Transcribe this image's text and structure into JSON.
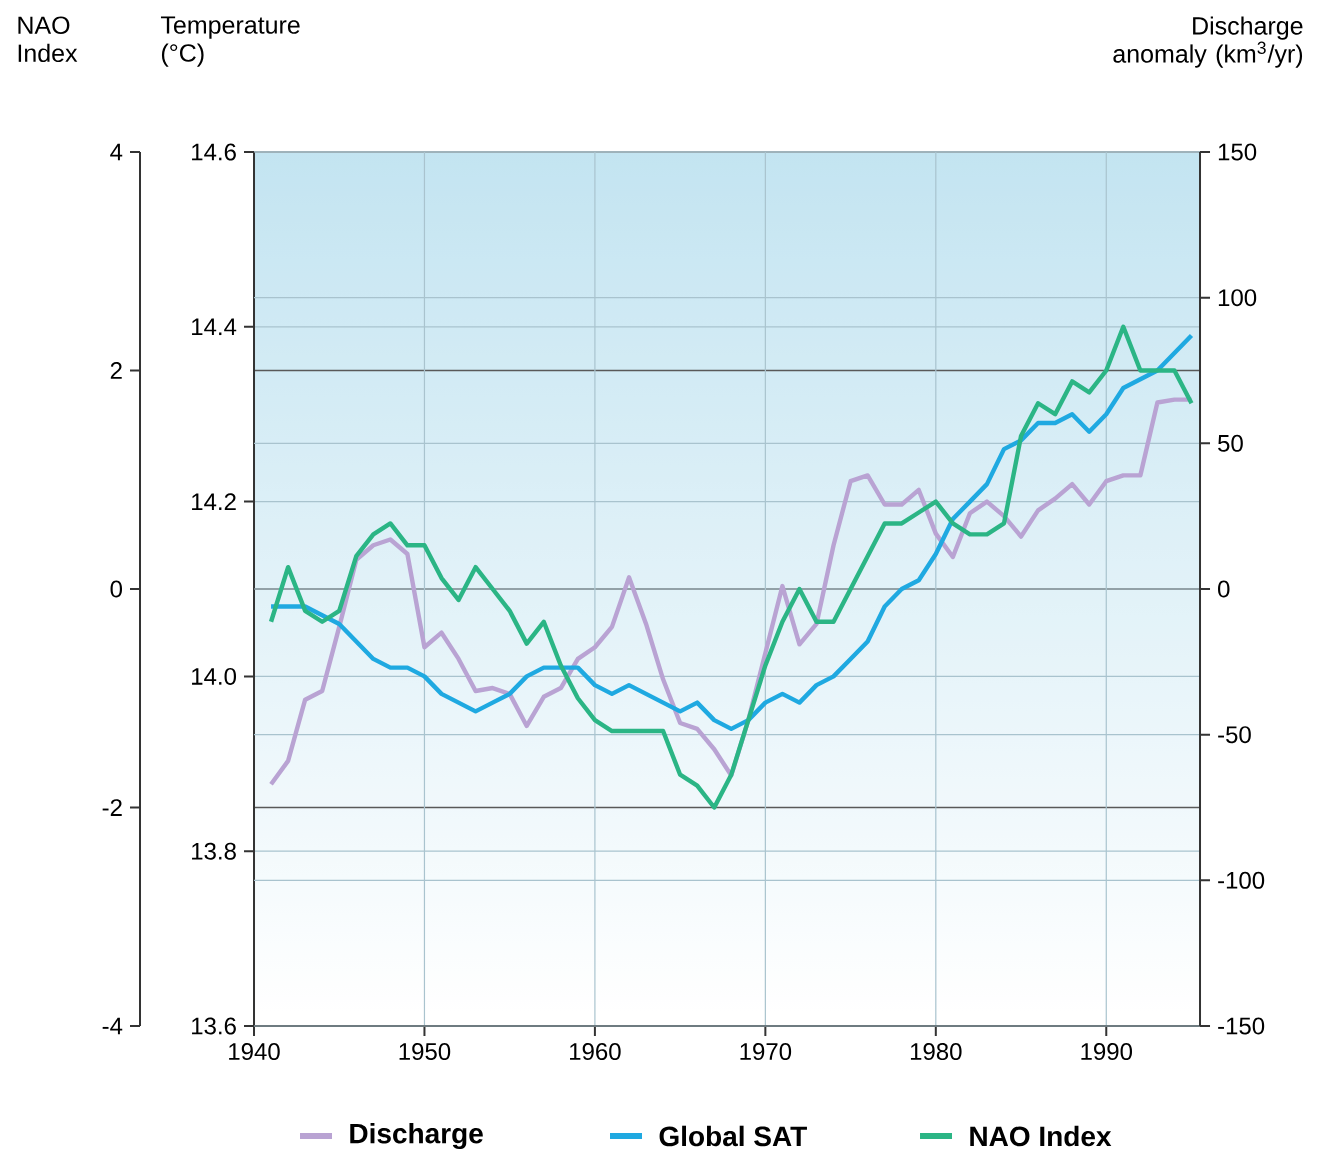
{
  "chart_data": {
    "type": "line",
    "ylabel": "Temperature (°C)",
    "y2label": "Discharge anomaly (km$^{3}$/yr)",
    "y3label": "NAO Index",
    "x": [
      1941,
      1942,
      1943,
      1944,
      1945,
      1946,
      1947,
      1948,
      1949,
      1950,
      1951,
      1952,
      1953,
      1954,
      1955,
      1956,
      1957,
      1958,
      1959,
      1960,
      1961,
      1962,
      1963,
      1964,
      1965,
      1966,
      1967,
      1968,
      1969,
      1970,
      1971,
      1972,
      1973,
      1974,
      1975,
      1976,
      1977,
      1978,
      1979,
      1980,
      1981,
      1982,
      1983,
      1984,
      1985,
      1986,
      1987,
      1988,
      1989,
      1990,
      1991,
      1992,
      1993,
      1994,
      1995
    ],
    "xlim": [
      1940,
      1995.5
    ],
    "xticks": [
      1940,
      1950,
      1960,
      1970,
      1980,
      1990
    ],
    "ylim": [
      13.6,
      14.6
    ],
    "yticks": [
      13.6,
      13.8,
      {
        "value": 14.0,
        "label": "14.0"
      },
      14.2,
      14.4,
      14.6
    ],
    "y2lim": [
      -150,
      150
    ],
    "y2ticks": [
      -150,
      -100,
      -50,
      0,
      50,
      100,
      150
    ],
    "y3lim": [
      -4,
      4
    ],
    "y3ticks": [
      -4,
      -2,
      0,
      2,
      4
    ],
    "grid": true,
    "legend": "bottom",
    "line_style": "solid",
    "series": [
      {
        "name": "Discharge",
        "color": "#b9a3d3",
        "axis": "y2",
        "values": [
          -67,
          -59,
          -38,
          -35,
          -13,
          10,
          15,
          17,
          12,
          -20,
          -15,
          -24,
          -35,
          -34,
          -36,
          -47,
          -37,
          -34,
          -24,
          -20,
          -13,
          4,
          -12,
          -31,
          -46,
          -48,
          -55,
          -64,
          -45,
          -22,
          1,
          -19,
          -12,
          15,
          37,
          39,
          29,
          29,
          34,
          19,
          11,
          26,
          30,
          25,
          18,
          27,
          31,
          36,
          29,
          37,
          39,
          39,
          64,
          65,
          65
        ]
      },
      {
        "name": "Global SAT",
        "color": "#1fa9e1",
        "axis": "y",
        "values": [
          14.08,
          14.08,
          14.08,
          14.07,
          14.06,
          14.04,
          14.02,
          14.01,
          14.01,
          14.0,
          13.98,
          13.97,
          13.96,
          13.97,
          13.98,
          14.0,
          14.01,
          14.01,
          14.01,
          13.99,
          13.98,
          13.99,
          13.98,
          13.97,
          13.96,
          13.97,
          13.95,
          13.94,
          13.95,
          13.97,
          13.98,
          13.97,
          13.99,
          14.0,
          14.02,
          14.04,
          14.08,
          14.1,
          14.11,
          14.14,
          14.18,
          14.2,
          14.22,
          14.26,
          14.27,
          14.29,
          14.29,
          14.3,
          14.28,
          14.3,
          14.33,
          14.34,
          14.35,
          14.37,
          14.39
        ]
      },
      {
        "name": "NAO Index",
        "color": "#2bb585",
        "axis": "y3",
        "values": [
          -0.3,
          0.2,
          -0.2,
          -0.3,
          -0.2,
          0.3,
          0.5,
          0.6,
          0.4,
          0.4,
          0.1,
          -0.1,
          0.2,
          0.0,
          -0.2,
          -0.5,
          -0.3,
          -0.7,
          -1.0,
          -1.2,
          -1.3,
          -1.3,
          -1.3,
          -1.3,
          -1.7,
          -1.8,
          -2.0,
          -1.7,
          -1.2,
          -0.7,
          -0.3,
          0.0,
          -0.3,
          -0.3,
          0.0,
          0.3,
          0.6,
          0.6,
          0.7,
          0.8,
          0.6,
          0.5,
          0.5,
          0.6,
          1.4,
          1.7,
          1.6,
          1.9,
          1.8,
          2.0,
          2.4,
          2.0,
          2.0,
          2.0,
          1.7
        ]
      }
    ]
  }
}
